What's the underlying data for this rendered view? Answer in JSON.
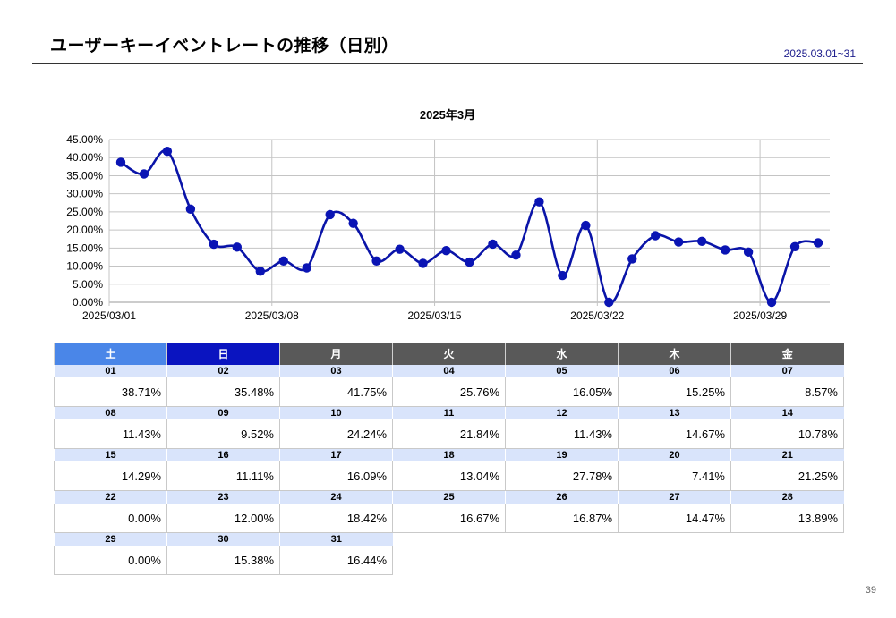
{
  "header": {
    "title": "ユーザーキーイベントレートの推移（日別）",
    "date_range": "2025.03.01~31"
  },
  "page_number": "39",
  "chart_data": {
    "type": "line",
    "title": "2025年3月",
    "xlabel": "",
    "ylabel": "",
    "x": [
      "2025/03/01",
      "2025/03/02",
      "2025/03/03",
      "2025/03/04",
      "2025/03/05",
      "2025/03/06",
      "2025/03/07",
      "2025/03/08",
      "2025/03/09",
      "2025/03/10",
      "2025/03/11",
      "2025/03/12",
      "2025/03/13",
      "2025/03/14",
      "2025/03/15",
      "2025/03/16",
      "2025/03/17",
      "2025/03/18",
      "2025/03/19",
      "2025/03/20",
      "2025/03/21",
      "2025/03/22",
      "2025/03/23",
      "2025/03/24",
      "2025/03/25",
      "2025/03/26",
      "2025/03/27",
      "2025/03/28",
      "2025/03/29",
      "2025/03/30",
      "2025/03/31"
    ],
    "x_tick_labels": [
      "2025/03/01",
      "2025/03/08",
      "2025/03/15",
      "2025/03/22",
      "2025/03/29"
    ],
    "y_tick_labels": [
      "0.00%",
      "5.00%",
      "10.00%",
      "15.00%",
      "20.00%",
      "25.00%",
      "30.00%",
      "35.00%",
      "40.00%",
      "45.00%"
    ],
    "ylim": [
      0,
      45
    ],
    "grid": true,
    "series": [
      {
        "values": [
          38.71,
          35.48,
          41.75,
          25.76,
          16.05,
          15.25,
          8.57,
          11.43,
          9.52,
          24.24,
          21.84,
          11.43,
          14.67,
          10.78,
          14.29,
          11.11,
          16.09,
          13.04,
          27.78,
          7.41,
          21.25,
          0.0,
          12.0,
          18.42,
          16.67,
          16.87,
          14.47,
          13.89,
          0.0,
          15.38,
          16.44
        ]
      }
    ],
    "line_color": "#0a14a8",
    "marker_color": "#0a14b4"
  },
  "calendar": {
    "headers": [
      {
        "label": "土",
        "color": "#4a86e8"
      },
      {
        "label": "日",
        "color": "#0a14c0"
      },
      {
        "label": "月",
        "color": "#595959"
      },
      {
        "label": "火",
        "color": "#595959"
      },
      {
        "label": "水",
        "color": "#595959"
      },
      {
        "label": "木",
        "color": "#595959"
      },
      {
        "label": "金",
        "color": "#595959"
      }
    ],
    "weeks": [
      [
        {
          "day": "01",
          "value": "38.71%"
        },
        {
          "day": "02",
          "value": "35.48%"
        },
        {
          "day": "03",
          "value": "41.75%"
        },
        {
          "day": "04",
          "value": "25.76%"
        },
        {
          "day": "05",
          "value": "16.05%"
        },
        {
          "day": "06",
          "value": "15.25%"
        },
        {
          "day": "07",
          "value": "8.57%"
        }
      ],
      [
        {
          "day": "08",
          "value": "11.43%"
        },
        {
          "day": "09",
          "value": "9.52%"
        },
        {
          "day": "10",
          "value": "24.24%"
        },
        {
          "day": "11",
          "value": "21.84%"
        },
        {
          "day": "12",
          "value": "11.43%"
        },
        {
          "day": "13",
          "value": "14.67%"
        },
        {
          "day": "14",
          "value": "10.78%"
        }
      ],
      [
        {
          "day": "15",
          "value": "14.29%"
        },
        {
          "day": "16",
          "value": "11.11%"
        },
        {
          "day": "17",
          "value": "16.09%"
        },
        {
          "day": "18",
          "value": "13.04%"
        },
        {
          "day": "19",
          "value": "27.78%"
        },
        {
          "day": "20",
          "value": "7.41%"
        },
        {
          "day": "21",
          "value": "21.25%"
        }
      ],
      [
        {
          "day": "22",
          "value": "0.00%"
        },
        {
          "day": "23",
          "value": "12.00%"
        },
        {
          "day": "24",
          "value": "18.42%"
        },
        {
          "day": "25",
          "value": "16.67%"
        },
        {
          "day": "26",
          "value": "16.87%"
        },
        {
          "day": "27",
          "value": "14.47%"
        },
        {
          "day": "28",
          "value": "13.89%"
        }
      ],
      [
        {
          "day": "29",
          "value": "0.00%"
        },
        {
          "day": "30",
          "value": "15.38%"
        },
        {
          "day": "31",
          "value": "16.44%"
        }
      ]
    ]
  }
}
